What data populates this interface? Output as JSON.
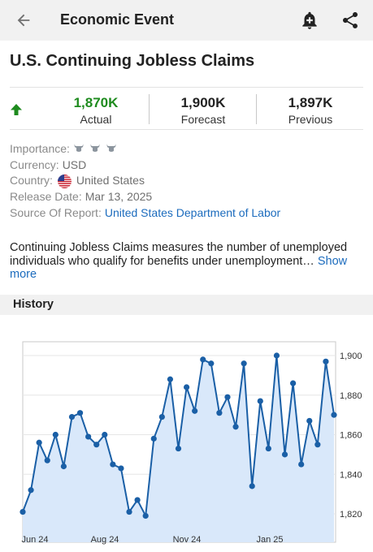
{
  "header": {
    "title": "Economic Event",
    "icons": {
      "back": "arrow-left-icon",
      "bell": "bell-plus-icon",
      "share": "share-icon"
    }
  },
  "event": {
    "title": "U.S. Continuing Jobless Claims",
    "trend_icon": "arrow-up-icon",
    "accent_color": "#1e8b1e",
    "actual": {
      "value": "1,870K",
      "label": "Actual"
    },
    "forecast": {
      "value": "1,900K",
      "label": "Forecast"
    },
    "previous": {
      "value": "1,897K",
      "label": "Previous"
    }
  },
  "details": {
    "importance_label": "Importance:",
    "importance_level": 3,
    "importance_max": 3,
    "currency_label": "Currency:",
    "currency": "USD",
    "country_label": "Country:",
    "country": "United States",
    "release_label": "Release Date:",
    "release_date": "Mar 13, 2025",
    "source_label": "Source Of Report:",
    "source": "United States Department of Labor"
  },
  "description": {
    "text": "Continuing Jobless Claims measures the number of unemployed individuals who qualify for benefits under unemployment…",
    "show_more": "Show more"
  },
  "history": {
    "title": "History"
  },
  "chart_data": {
    "type": "area",
    "x_ticks": [
      "Jun 24",
      "Aug 24",
      "Nov 24",
      "Jan 25"
    ],
    "y_ticks": [
      "1,900",
      "1,880",
      "1,860",
      "1,840",
      "1,820"
    ],
    "ylim": [
      1815,
      1900
    ],
    "line_color": "#1a5fa6",
    "fill_color": "#d9e8fa",
    "values": [
      1821,
      1832,
      1856,
      1847,
      1860,
      1844,
      1869,
      1871,
      1859,
      1855,
      1860,
      1845,
      1843,
      1821,
      1827,
      1819,
      1858,
      1869,
      1888,
      1853,
      1884,
      1872,
      1898,
      1896,
      1871,
      1879,
      1864,
      1896,
      1834,
      1877,
      1853,
      1900,
      1850,
      1886,
      1845,
      1867,
      1855,
      1897,
      1870
    ]
  }
}
